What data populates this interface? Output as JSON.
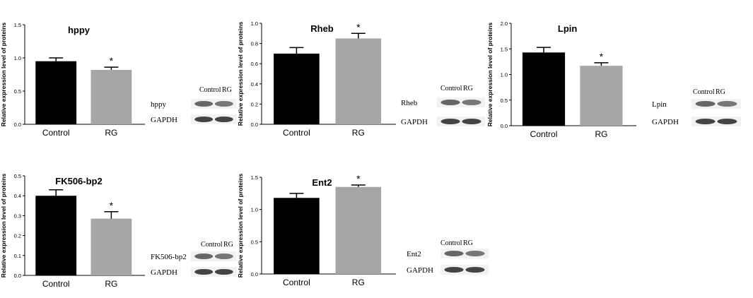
{
  "chart_data": [
    {
      "type": "bar",
      "title": "hppy",
      "ylabel": "Relative expression level of proteins",
      "categories": [
        "Control",
        "RG"
      ],
      "values": [
        0.95,
        0.82
      ],
      "errors": [
        0.05,
        0.04
      ],
      "significance": [
        "",
        "*"
      ],
      "ylim": [
        0,
        1.5
      ],
      "yticks": [
        "0.0",
        "0.5",
        "1.0",
        "1.5"
      ],
      "colors": [
        "#000000",
        "#a6a6a6"
      ],
      "blot": {
        "headers": [
          "Control",
          "RG"
        ],
        "rows": [
          "hppy",
          "GAPDH"
        ]
      }
    },
    {
      "type": "bar",
      "title": "Rheb",
      "ylabel": "Relative expression level of proteins",
      "categories": [
        "Control",
        "RG"
      ],
      "values": [
        0.7,
        0.85
      ],
      "errors": [
        0.06,
        0.05
      ],
      "significance": [
        "",
        "*"
      ],
      "ylim": [
        0,
        1.0
      ],
      "yticks": [
        "0.0",
        "0.2",
        "0.4",
        "0.6",
        "0.8",
        "1.0"
      ],
      "colors": [
        "#000000",
        "#a6a6a6"
      ],
      "blot": {
        "headers": [
          "Control",
          "RG"
        ],
        "rows": [
          "Rheb",
          "GAPDH"
        ]
      }
    },
    {
      "type": "bar",
      "title": "Lpin",
      "ylabel": "Relative expression level of proteins",
      "categories": [
        "Control",
        "RG"
      ],
      "values": [
        1.43,
        1.17
      ],
      "errors": [
        0.1,
        0.06
      ],
      "significance": [
        "",
        "*"
      ],
      "ylim": [
        0,
        2.0
      ],
      "yticks": [
        "0.0",
        "0.5",
        "1.0",
        "1.5",
        "2.0"
      ],
      "colors": [
        "#000000",
        "#a6a6a6"
      ],
      "blot": {
        "headers": [
          "Control",
          "RG"
        ],
        "rows": [
          "Lpin",
          "GAPDH"
        ]
      }
    },
    {
      "type": "bar",
      "title": "FK506-bp2",
      "ylabel": "Relative expression level of proteins",
      "categories": [
        "Control",
        "RG"
      ],
      "values": [
        0.4,
        0.285
      ],
      "errors": [
        0.03,
        0.035
      ],
      "significance": [
        "",
        "*"
      ],
      "ylim": [
        0,
        0.5
      ],
      "yticks": [
        "0.0",
        "0.1",
        "0.2",
        "0.3",
        "0.4",
        "0.5"
      ],
      "colors": [
        "#000000",
        "#a6a6a6"
      ],
      "blot": {
        "headers": [
          "Control",
          "RG"
        ],
        "rows": [
          "FK506-bp2",
          "GAPDH"
        ]
      }
    },
    {
      "type": "bar",
      "title": "Ent2",
      "ylabel": "Relative expression level of proteins",
      "categories": [
        "Control",
        "RG"
      ],
      "values": [
        1.18,
        1.35
      ],
      "errors": [
        0.07,
        0.03
      ],
      "significance": [
        "",
        "*"
      ],
      "ylim": [
        0,
        1.5
      ],
      "yticks": [
        "0.0",
        "0.5",
        "1.0",
        "1.5"
      ],
      "colors": [
        "#000000",
        "#a6a6a6"
      ],
      "blot": {
        "headers": [
          "Control",
          "RG"
        ],
        "rows": [
          "Ent2",
          "GAPDH"
        ]
      }
    }
  ]
}
